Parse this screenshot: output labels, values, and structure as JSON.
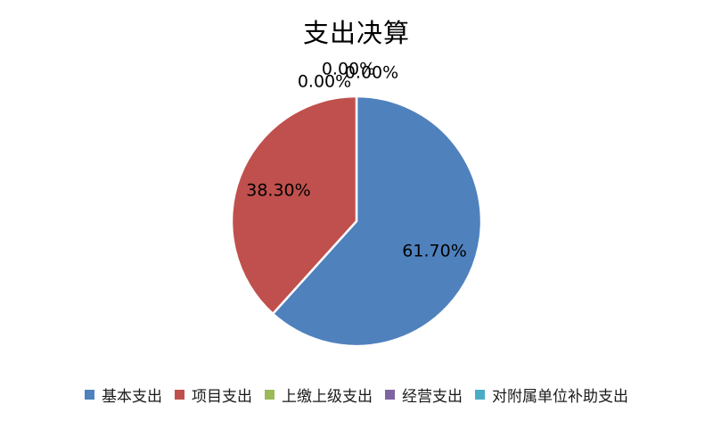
{
  "title": "支出决算",
  "chart_data": {
    "type": "pie",
    "title": "支出决算",
    "categories": [
      "基本支出",
      "项目支出",
      "上缴上级支出",
      "经营支出",
      "对附属单位补助支出"
    ],
    "values": [
      61.7,
      38.3,
      0.0,
      0.0,
      0.0
    ],
    "labels": [
      "61.70%",
      "38.30%",
      "0.00%",
      "0.00%",
      "0.00%"
    ],
    "colors": [
      "#4F81BD",
      "#C0504D",
      "#9BBB59",
      "#8064A2",
      "#4BACC6"
    ],
    "start_angle_deg": 0,
    "direction": "clockwise",
    "slice_border_color": "#FFFFFF",
    "label_color": "#000000",
    "legend_position": "bottom",
    "background": "#FFFFFF"
  },
  "legend": {
    "items": [
      {
        "label": "基本支出",
        "color": "#4F81BD"
      },
      {
        "label": "项目支出",
        "color": "#C0504D"
      },
      {
        "label": "上缴上级支出",
        "color": "#9BBB59"
      },
      {
        "label": "经营支出",
        "color": "#8064A2"
      },
      {
        "label": "对附属单位补助支出",
        "color": "#4BACC6"
      }
    ]
  }
}
